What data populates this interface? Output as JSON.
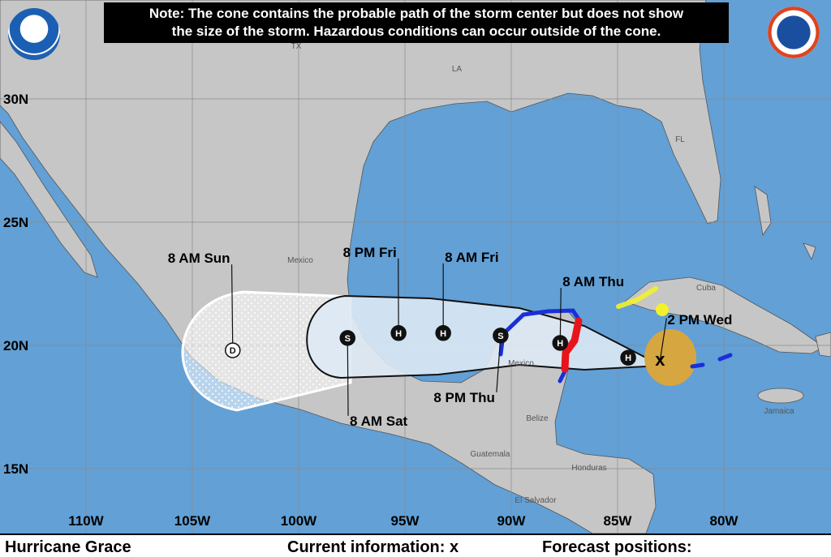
{
  "note": {
    "line1": "Note: The cone contains the probable path of the storm center but does not show",
    "line2": "the size of the storm. Hazardous conditions can occur outside of the cone."
  },
  "logos": {
    "left": "NOAA",
    "right": "NATIONAL WEATHER SERVICE"
  },
  "colors": {
    "ocean": "#62a0d6",
    "land": "#c6c6c6",
    "cone": "#dde9f4",
    "hurricane_warning": "#e8141c",
    "tropical_storm_warning": "#1a2fd9",
    "tropical_storm_watch": "#f2f22a",
    "wind_field": "#d6a640"
  },
  "axes": {
    "lon_labels": [
      "110W",
      "105W",
      "100W",
      "95W",
      "90W",
      "85W",
      "80W"
    ],
    "lon_values": [
      -110,
      -105,
      -100,
      -95,
      -90,
      -85,
      -80
    ],
    "lat_labels": [
      "30N",
      "25N",
      "20N",
      "15N"
    ],
    "lat_values": [
      30,
      25,
      20,
      15
    ]
  },
  "places": [
    "TX",
    "LA",
    "FL",
    "Mexico",
    "Cuba",
    "Mexico",
    "Belize",
    "Guatemala",
    "Honduras",
    "El Salvador",
    "Jamaica"
  ],
  "current": {
    "symbol": "x",
    "lon": -83.0,
    "lat": 19.4,
    "label": "2 PM Wed"
  },
  "forecast_points": [
    {
      "type": "H",
      "lon": -84.5,
      "lat": 19.5,
      "label": ""
    },
    {
      "type": "H",
      "lon": -87.7,
      "lat": 20.1,
      "label": "8 AM Thu"
    },
    {
      "type": "S",
      "lon": -90.5,
      "lat": 20.4,
      "label": "8 PM Thu"
    },
    {
      "type": "H",
      "lon": -93.2,
      "lat": 20.5,
      "label": "8 AM Fri"
    },
    {
      "type": "H",
      "lon": -95.3,
      "lat": 20.5,
      "label": "8 PM Fri"
    },
    {
      "type": "S",
      "lon": -97.7,
      "lat": 20.3,
      "label": "8 AM Sat"
    },
    {
      "type": "D",
      "lon": -103.1,
      "lat": 19.8,
      "label": "8 AM Sun"
    }
  ],
  "legend": {
    "storm_name": "Hurricane Grace",
    "current_info": "Current information: x",
    "forecast_positions": "Forecast positions:"
  }
}
